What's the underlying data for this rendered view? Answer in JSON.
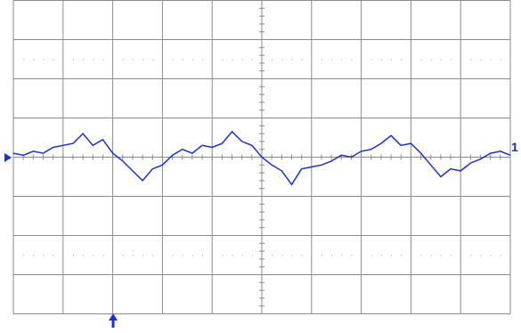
{
  "chart_data": {
    "type": "line",
    "channel_label": "1",
    "x": [
      0,
      0.2,
      0.4,
      0.6,
      0.8,
      1,
      1.2,
      1.4,
      1.6,
      1.8,
      2,
      2.2,
      2.4,
      2.6,
      2.8,
      3,
      3.2,
      3.4,
      3.6,
      3.8,
      4,
      4.2,
      4.4,
      4.6,
      4.8,
      5,
      5.2,
      5.4,
      5.6,
      5.8,
      6,
      6.2,
      6.4,
      6.6,
      6.8,
      7,
      7.2,
      7.4,
      7.6,
      7.8,
      8,
      8.2,
      8.4,
      8.6,
      8.8,
      9,
      9.2,
      9.4,
      9.6,
      9.8,
      10
    ],
    "series": [
      {
        "color": "#1a2fd6",
        "values": [
          0.1,
          0.05,
          0.15,
          0.1,
          0.25,
          0.3,
          0.35,
          0.6,
          0.3,
          0.45,
          0.1,
          -0.1,
          -0.35,
          -0.6,
          -0.3,
          -0.2,
          0.05,
          0.2,
          0.1,
          0.3,
          0.25,
          0.35,
          0.65,
          0.4,
          0.3,
          0.0,
          -0.2,
          -0.35,
          -0.7,
          -0.3,
          -0.25,
          -0.2,
          -0.1,
          0.05,
          0.0,
          0.15,
          0.2,
          0.35,
          0.55,
          0.3,
          0.35,
          0.1,
          -0.2,
          -0.5,
          -0.3,
          -0.35,
          -0.15,
          -0.05,
          0.1,
          0.15,
          0.05
        ]
      }
    ],
    "xlim": [
      0,
      10
    ],
    "ylim": [
      -4,
      4
    ],
    "xticks": [
      0,
      1,
      2,
      3,
      4,
      5,
      6,
      7,
      8,
      9,
      10
    ],
    "yticks": [
      -4,
      -3,
      -2,
      -1,
      0,
      1,
      2,
      3,
      4
    ],
    "grid": true
  }
}
